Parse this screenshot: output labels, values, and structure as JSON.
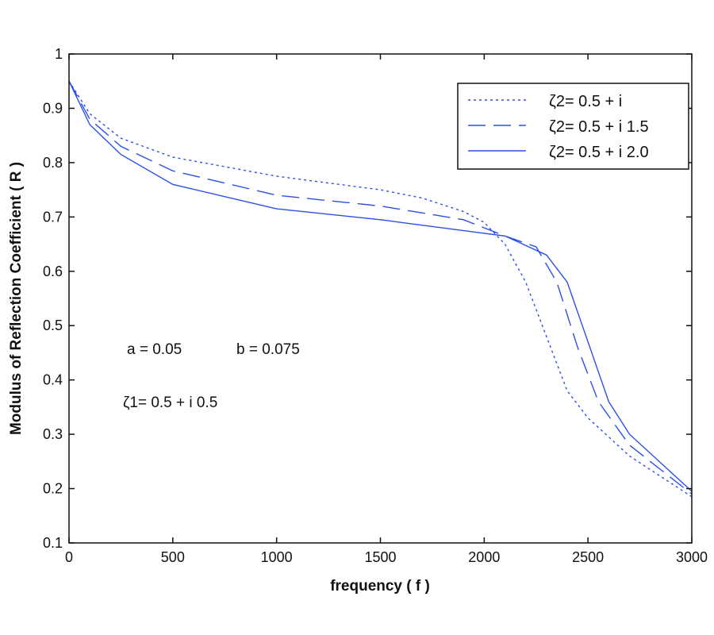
{
  "chart_data": {
    "type": "line",
    "title": "",
    "xlabel": "frequency ( f )",
    "ylabel": "Modulus of Reflection Coefficient ( R )",
    "xlim": [
      0,
      3000
    ],
    "ylim": [
      0.1,
      1
    ],
    "xticks": [
      0,
      500,
      1000,
      1500,
      2000,
      2500,
      3000
    ],
    "yticks": [
      0.1,
      0.2,
      0.3,
      0.4,
      0.5,
      0.6,
      0.7,
      0.8,
      0.9,
      1
    ],
    "grid": false,
    "legend_placement": "top-right",
    "line_color": "#2b4fe8",
    "series": [
      {
        "name": "ζ2= 0.5 + i",
        "style": "dotted",
        "x": [
          0,
          100,
          250,
          500,
          1000,
          1500,
          1700,
          1900,
          2000,
          2100,
          2200,
          2300,
          2400,
          2500,
          2700,
          2900,
          3000
        ],
        "y": [
          0.95,
          0.89,
          0.845,
          0.81,
          0.775,
          0.75,
          0.735,
          0.71,
          0.69,
          0.65,
          0.58,
          0.48,
          0.38,
          0.33,
          0.26,
          0.21,
          0.185
        ]
      },
      {
        "name": "ζ2= 0.5 + i 1.5",
        "style": "dashed",
        "x": [
          0,
          100,
          250,
          500,
          1000,
          1500,
          1900,
          2100,
          2250,
          2350,
          2450,
          2550,
          2700,
          2900,
          3000
        ],
        "y": [
          0.95,
          0.88,
          0.83,
          0.785,
          0.74,
          0.72,
          0.695,
          0.665,
          0.645,
          0.58,
          0.46,
          0.36,
          0.28,
          0.22,
          0.19
        ]
      },
      {
        "name": "ζ2= 0.5 + i 2.0",
        "style": "solid",
        "x": [
          0,
          100,
          250,
          500,
          1000,
          1500,
          2000,
          2100,
          2300,
          2400,
          2500,
          2600,
          2700,
          2900,
          3000
        ],
        "y": [
          0.95,
          0.87,
          0.815,
          0.76,
          0.715,
          0.695,
          0.67,
          0.665,
          0.63,
          0.58,
          0.47,
          0.36,
          0.3,
          0.23,
          0.195
        ]
      }
    ],
    "annotations": {
      "a": "a = 0.05",
      "b": "b = 0.075",
      "zeta1": "ζ1= 0.5 + i 0.5"
    }
  }
}
